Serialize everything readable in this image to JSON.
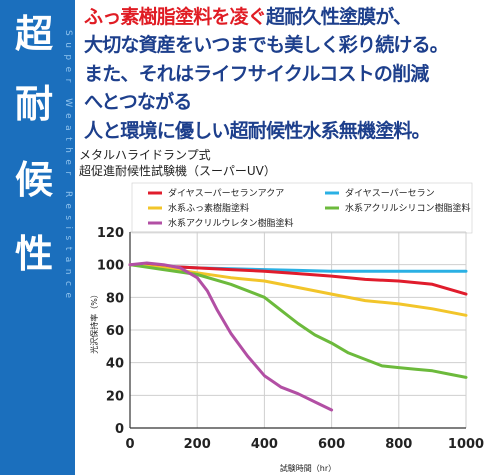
{
  "sidebar": {
    "title_chars": [
      "超",
      "耐",
      "候",
      "性"
    ],
    "subtitle": "Super Weather Resistance"
  },
  "headline": {
    "line1_red": "ふっ素樹脂塗料を凌ぐ",
    "line1_blue": "超耐久性塗膜が、",
    "line2": "大切な資産をいつまでも美しく彩り続ける。",
    "line3": "また、それはライフサイクルコストの削減",
    "line4": "へとつながる",
    "line5": "人と環境に優しい超耐候性水系無機塗料。"
  },
  "test": {
    "line1": "メタルハライドランプ式",
    "line2": "超促進耐候性試験機（スーパーUV）"
  },
  "colors": {
    "sidebar": "#1b6fbd",
    "headline_blue": "#1d3f8c",
    "headline_red": "#e01c24"
  },
  "chart_data": {
    "type": "line",
    "xlabel": "試験時間（hr）",
    "ylabel": "光沢保持率（%）",
    "xlim": [
      0,
      1000
    ],
    "ylim": [
      0,
      120
    ],
    "xticks": [
      0,
      200,
      400,
      600,
      800,
      1000
    ],
    "yticks": [
      0,
      20,
      40,
      60,
      80,
      100,
      120
    ],
    "grid": true,
    "legend_position": "top",
    "series": [
      {
        "name": "ダイヤスーパーセラン",
        "color": "#2ab0e4",
        "x": [
          0,
          100,
          200,
          300,
          400,
          500,
          600,
          700,
          800,
          900,
          1000
        ],
        "y": [
          100,
          99,
          98,
          97.5,
          97,
          96.5,
          96,
          96,
          96,
          96,
          96
        ]
      },
      {
        "name": "ダイヤスーパーセランアクア",
        "color": "#e01c2c",
        "x": [
          0,
          100,
          200,
          300,
          400,
          500,
          600,
          700,
          800,
          900,
          950,
          1000
        ],
        "y": [
          100,
          99,
          98,
          97,
          96,
          94.5,
          93,
          91,
          90,
          88,
          85,
          82
        ]
      },
      {
        "name": "水系ふっ素樹脂塗料",
        "color": "#f2c52a",
        "x": [
          0,
          100,
          200,
          300,
          400,
          500,
          600,
          700,
          800,
          900,
          1000
        ],
        "y": [
          100,
          98,
          95,
          92,
          90,
          86,
          82,
          78,
          76,
          73,
          69
        ]
      },
      {
        "name": "水系アクリルシリコン樹脂塗料",
        "color": "#6cba3c",
        "x": [
          0,
          100,
          200,
          300,
          400,
          450,
          500,
          550,
          600,
          650,
          700,
          750,
          800,
          850,
          900,
          950,
          1000
        ],
        "y": [
          100,
          97,
          94,
          88,
          80,
          72,
          64,
          57,
          52,
          46,
          42,
          38,
          37,
          36,
          35,
          33,
          31
        ]
      },
      {
        "name": "水系アクリルウレタン樹脂塗料",
        "color": "#b24fa4",
        "x": [
          0,
          50,
          100,
          150,
          200,
          230,
          260,
          300,
          350,
          400,
          450,
          500,
          550,
          600
        ],
        "y": [
          100,
          101,
          100,
          98,
          92,
          84,
          72,
          58,
          44,
          32,
          25,
          21,
          16,
          11
        ]
      }
    ]
  }
}
